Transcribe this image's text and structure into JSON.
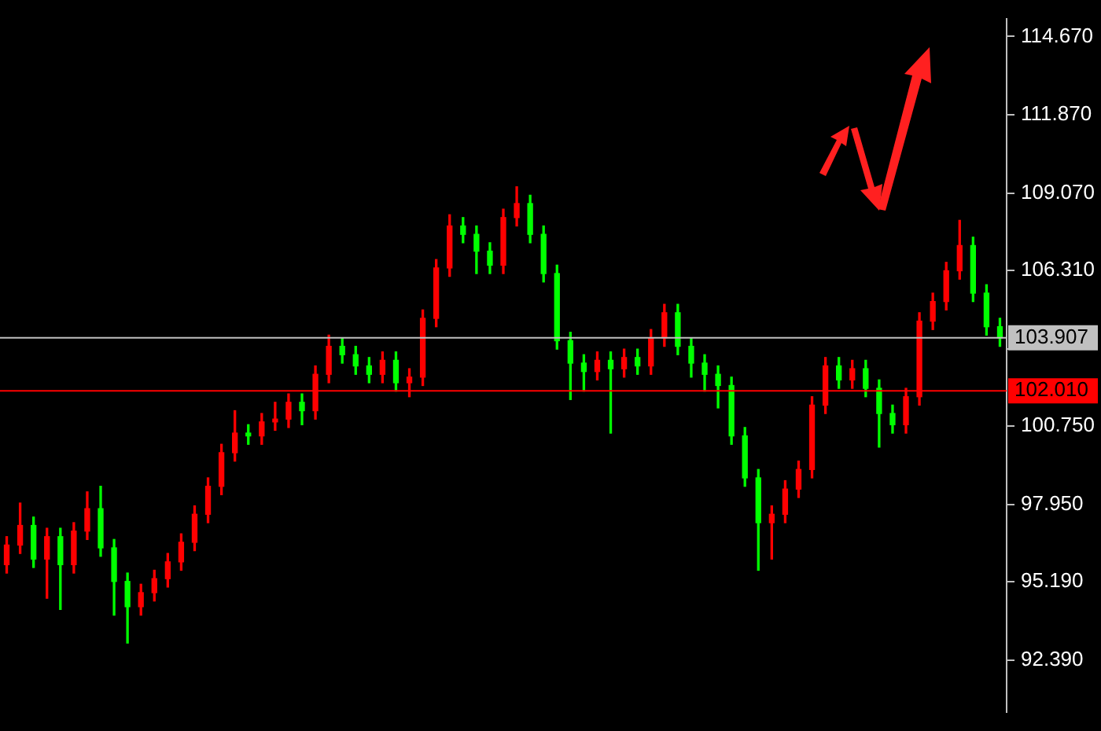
{
  "chart_data": {
    "type": "candlestick",
    "categories": [
      null,
      null,
      null,
      null,
      null,
      null,
      null,
      null,
      null,
      null,
      null,
      null,
      null,
      null,
      null,
      null,
      null,
      null,
      null,
      null,
      null,
      null,
      null,
      null,
      null,
      null,
      null,
      null,
      null,
      null,
      null,
      null,
      null,
      null,
      null,
      null,
      null,
      null,
      null,
      null,
      null,
      null,
      null,
      null,
      null,
      null,
      null,
      null,
      null,
      null,
      null,
      null,
      null,
      null,
      null,
      null,
      null,
      null,
      null,
      null,
      null,
      null,
      null,
      null,
      null,
      null,
      null,
      null,
      null,
      null,
      null,
      null,
      null,
      null,
      null
    ],
    "ohlc": [
      [
        95.8,
        96.8,
        95.5,
        96.5
      ],
      [
        96.5,
        98.0,
        96.2,
        97.2
      ],
      [
        97.2,
        97.5,
        95.7,
        96.0
      ],
      [
        96.0,
        97.1,
        94.6,
        96.8
      ],
      [
        96.8,
        97.1,
        94.2,
        95.8
      ],
      [
        95.8,
        97.3,
        95.5,
        97.0
      ],
      [
        97.0,
        98.4,
        96.7,
        97.8
      ],
      [
        97.8,
        98.6,
        96.1,
        96.4
      ],
      [
        96.4,
        96.7,
        94.0,
        95.2
      ],
      [
        95.2,
        95.5,
        93.0,
        94.3
      ],
      [
        94.3,
        95.1,
        94.0,
        94.8
      ],
      [
        94.8,
        95.6,
        94.5,
        95.3
      ],
      [
        95.3,
        96.2,
        95.0,
        95.9
      ],
      [
        95.9,
        96.9,
        95.6,
        96.6
      ],
      [
        96.6,
        97.9,
        96.3,
        97.6
      ],
      [
        97.6,
        98.9,
        97.3,
        98.6
      ],
      [
        98.6,
        100.1,
        98.3,
        99.8
      ],
      [
        99.8,
        101.3,
        99.5,
        100.5
      ],
      [
        100.5,
        100.8,
        100.1,
        100.4
      ],
      [
        100.4,
        101.2,
        100.1,
        100.9
      ],
      [
        100.9,
        101.6,
        100.6,
        101.0
      ],
      [
        101.0,
        101.9,
        100.7,
        101.6
      ],
      [
        101.6,
        101.9,
        100.8,
        101.3
      ],
      [
        101.3,
        102.9,
        101.0,
        102.6
      ],
      [
        102.6,
        104.0,
        102.3,
        103.6
      ],
      [
        103.6,
        103.9,
        103.0,
        103.3
      ],
      [
        103.3,
        103.6,
        102.6,
        102.9
      ],
      [
        102.9,
        103.2,
        102.3,
        102.6
      ],
      [
        102.6,
        103.4,
        102.3,
        103.1
      ],
      [
        103.1,
        103.4,
        102.0,
        102.3
      ],
      [
        102.3,
        102.8,
        101.8,
        102.5
      ],
      [
        102.5,
        104.9,
        102.2,
        104.6
      ],
      [
        104.6,
        106.7,
        104.3,
        106.4
      ],
      [
        106.4,
        108.3,
        106.1,
        107.9
      ],
      [
        107.9,
        108.2,
        107.3,
        107.6
      ],
      [
        107.6,
        107.9,
        106.2,
        107.0
      ],
      [
        107.0,
        107.3,
        106.2,
        106.5
      ],
      [
        106.5,
        108.5,
        106.2,
        108.2
      ],
      [
        108.2,
        109.3,
        107.9,
        108.7
      ],
      [
        108.7,
        109.0,
        107.3,
        107.6
      ],
      [
        107.6,
        107.9,
        105.9,
        106.2
      ],
      [
        106.2,
        106.5,
        103.5,
        103.8
      ],
      [
        103.8,
        104.1,
        101.7,
        103.0
      ],
      [
        103.0,
        103.3,
        102.0,
        102.7
      ],
      [
        102.7,
        103.4,
        102.4,
        103.1
      ],
      [
        103.1,
        103.4,
        100.5,
        102.8
      ],
      [
        102.8,
        103.5,
        102.5,
        103.2
      ],
      [
        103.2,
        103.5,
        102.6,
        102.9
      ],
      [
        102.9,
        104.2,
        102.6,
        103.9
      ],
      [
        103.9,
        105.1,
        103.6,
        104.8
      ],
      [
        104.8,
        105.1,
        103.3,
        103.6
      ],
      [
        103.6,
        103.9,
        102.5,
        103.0
      ],
      [
        103.0,
        103.3,
        102.0,
        102.6
      ],
      [
        102.6,
        102.9,
        101.4,
        102.2
      ],
      [
        102.2,
        102.5,
        100.1,
        100.4
      ],
      [
        100.4,
        100.7,
        98.6,
        98.9
      ],
      [
        98.9,
        99.2,
        95.6,
        97.3
      ],
      [
        97.3,
        97.9,
        96.0,
        97.6
      ],
      [
        97.6,
        98.8,
        97.3,
        98.5
      ],
      [
        98.5,
        99.5,
        98.2,
        99.2
      ],
      [
        99.2,
        101.8,
        98.9,
        101.5
      ],
      [
        101.5,
        103.2,
        101.2,
        102.9
      ],
      [
        102.9,
        103.2,
        102.1,
        102.4
      ],
      [
        102.4,
        103.1,
        102.1,
        102.8
      ],
      [
        102.8,
        103.1,
        101.8,
        102.1
      ],
      [
        102.1,
        102.4,
        100.0,
        101.2
      ],
      [
        101.2,
        101.5,
        100.5,
        100.8
      ],
      [
        100.8,
        102.1,
        100.5,
        101.8
      ],
      [
        101.8,
        104.8,
        101.5,
        104.5
      ],
      [
        104.5,
        105.5,
        104.2,
        105.2
      ],
      [
        105.2,
        106.6,
        104.9,
        106.3
      ],
      [
        106.3,
        108.1,
        106.0,
        107.2
      ],
      [
        107.2,
        107.5,
        105.2,
        105.5
      ],
      [
        105.5,
        105.8,
        104.0,
        104.3
      ],
      [
        104.3,
        104.6,
        103.6,
        103.9
      ]
    ],
    "colors": [
      "#ff0000",
      "#ff0000",
      "#00ff00",
      "#ff0000",
      "#00ff00",
      "#ff0000",
      "#ff0000",
      "#00ff00",
      "#00ff00",
      "#00ff00",
      "#ff0000",
      "#ff0000",
      "#ff0000",
      "#ff0000",
      "#ff0000",
      "#ff0000",
      "#ff0000",
      "#ff0000",
      "#00ff00",
      "#ff0000",
      "#ff0000",
      "#ff0000",
      "#00ff00",
      "#ff0000",
      "#ff0000",
      "#00ff00",
      "#00ff00",
      "#00ff00",
      "#ff0000",
      "#00ff00",
      "#ff0000",
      "#ff0000",
      "#ff0000",
      "#ff0000",
      "#00ff00",
      "#00ff00",
      "#00ff00",
      "#ff0000",
      "#ff0000",
      "#00ff00",
      "#00ff00",
      "#00ff00",
      "#00ff00",
      "#00ff00",
      "#ff0000",
      "#00ff00",
      "#ff0000",
      "#00ff00",
      "#ff0000",
      "#ff0000",
      "#00ff00",
      "#00ff00",
      "#00ff00",
      "#00ff00",
      "#00ff00",
      "#00ff00",
      "#00ff00",
      "#ff0000",
      "#ff0000",
      "#ff0000",
      "#ff0000",
      "#ff0000",
      "#00ff00",
      "#ff0000",
      "#00ff00",
      "#00ff00",
      "#00ff00",
      "#ff0000",
      "#ff0000",
      "#ff0000",
      "#ff0000",
      "#ff0000",
      "#00ff00",
      "#00ff00",
      "#00ff00"
    ],
    "ylim": [
      90.52,
      115.31
    ],
    "yticks": [
      {
        "value": 92.39,
        "label": "92.390"
      },
      {
        "value": 95.19,
        "label": "95.190"
      },
      {
        "value": 97.95,
        "label": "97.950"
      },
      {
        "value": 100.75,
        "label": "100.750"
      },
      {
        "value": 103.51,
        "label": null
      },
      {
        "value": 106.31,
        "label": "106.310"
      },
      {
        "value": 109.07,
        "label": "109.070"
      },
      {
        "value": 111.87,
        "label": "111.870"
      },
      {
        "value": 114.67,
        "label": "114.670"
      }
    ],
    "tick_labels": "y",
    "grid": false,
    "legend": false,
    "ref_lines": [
      {
        "axis": "y",
        "value": 103.907,
        "label": "103.907",
        "color": "#c0c0c0"
      },
      {
        "axis": "y",
        "value": 102.01,
        "label": "102.010",
        "color": "#ff0000"
      }
    ]
  }
}
